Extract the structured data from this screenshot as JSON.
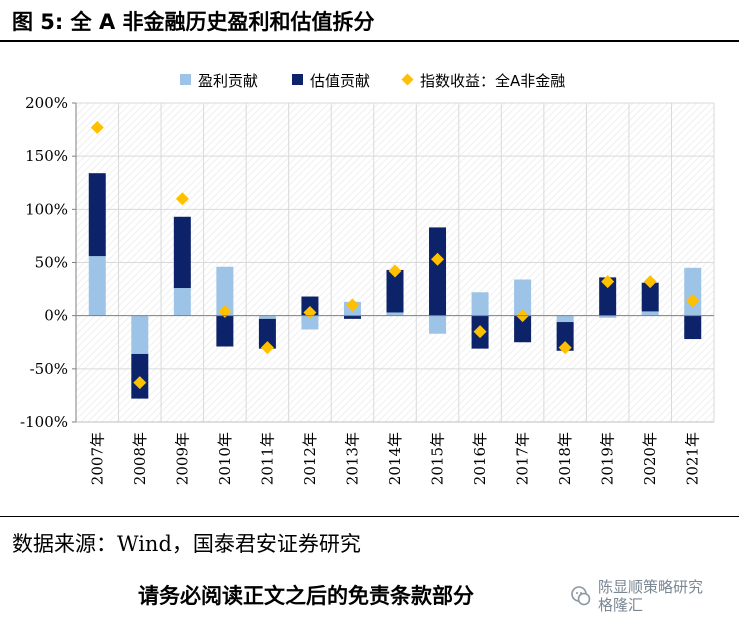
{
  "figure": {
    "title": "图 5:  全 A 非金融历史盈利和估值拆分",
    "source": "数据来源：Wind，国泰君安证券研究",
    "disclaimer": "请务必阅读正文之后的免责条款部分"
  },
  "watermark": {
    "line1": "陈显顺策略研究",
    "line2": "格隆汇"
  },
  "colors": {
    "earnings": "#9dc3e6",
    "valuation": "#0d2369",
    "index": "#ffc000",
    "grid": "#d9d9d9"
  },
  "chart_data": {
    "type": "bar",
    "stacked": true,
    "categories": [
      "2007年",
      "2008年",
      "2009年",
      "2010年",
      "2011年",
      "2012年",
      "2013年",
      "2014年",
      "2015年",
      "2016年",
      "2017年",
      "2018年",
      "2019年",
      "2020年",
      "2021年"
    ],
    "series": [
      {
        "name": "盈利贡献",
        "kind": "bar",
        "values": [
          56,
          -36,
          26,
          46,
          -3,
          -13,
          13,
          3,
          -17,
          22,
          34,
          -6,
          -2,
          4,
          45
        ]
      },
      {
        "name": "估值贡献",
        "kind": "bar",
        "values": [
          78,
          -42,
          67,
          -29,
          -28,
          18,
          -3,
          40,
          83,
          -31,
          -25,
          -27,
          36,
          27,
          -22
        ]
      },
      {
        "name": "指数收益：全A非金融",
        "kind": "marker",
        "values": [
          177,
          -63,
          110,
          4,
          -30,
          3,
          10,
          42,
          53,
          -15,
          0,
          -30,
          32,
          32,
          14
        ]
      }
    ],
    "ylim": [
      -100,
      200
    ],
    "yticks": [
      -100,
      -50,
      0,
      50,
      100,
      150,
      200
    ],
    "ytick_labels": [
      "-100%",
      "-50%",
      "0%",
      "50%",
      "100%",
      "150%",
      "200%"
    ],
    "xlabel": "",
    "ylabel": "",
    "legend_position": "top",
    "grid": true
  }
}
